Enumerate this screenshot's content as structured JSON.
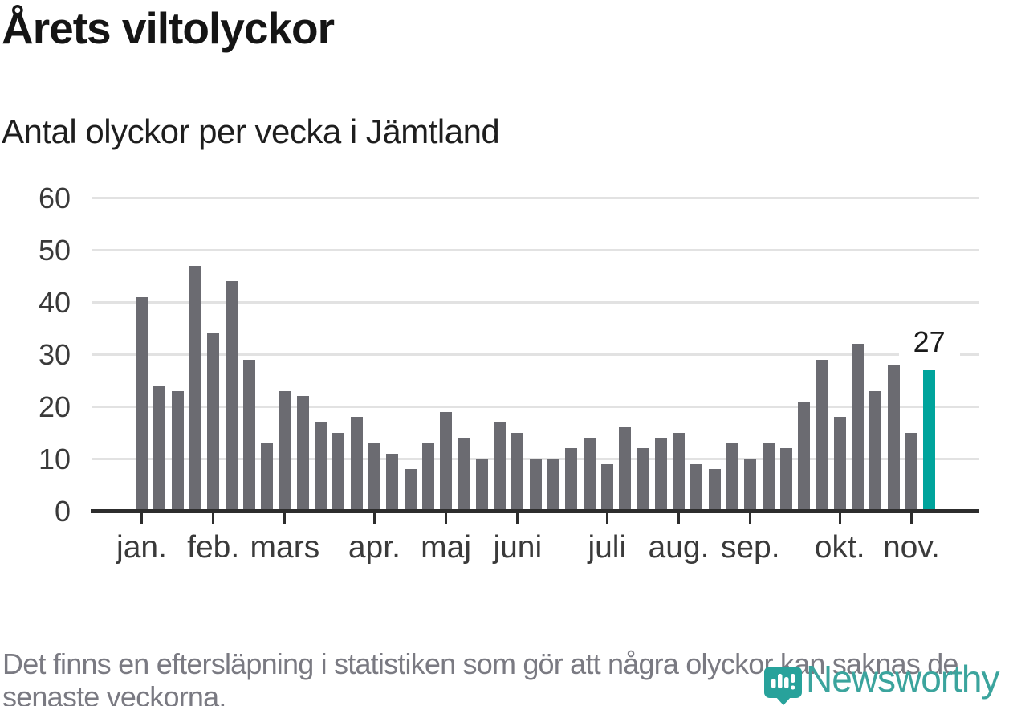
{
  "header": {
    "title": "Årets viltolyckor",
    "subtitle": "Antal olyckor per vecka i Jämtland"
  },
  "chart_data": {
    "type": "bar",
    "title": "Årets viltolyckor",
    "subtitle": "Antal olyckor per vecka i Jämtland",
    "x_unit": "vecka (week number)",
    "weeks": [
      1,
      2,
      3,
      4,
      5,
      6,
      7,
      8,
      9,
      10,
      11,
      12,
      13,
      14,
      15,
      16,
      17,
      18,
      19,
      20,
      21,
      22,
      23,
      24,
      25,
      26,
      27,
      28,
      29,
      30,
      31,
      32,
      33,
      34,
      35,
      36,
      37,
      38,
      39,
      40,
      41,
      42,
      43,
      44,
      45
    ],
    "values": [
      41,
      24,
      23,
      47,
      34,
      44,
      29,
      13,
      23,
      22,
      17,
      15,
      18,
      13,
      11,
      8,
      13,
      19,
      14,
      10,
      17,
      15,
      10,
      10,
      12,
      14,
      9,
      16,
      12,
      14,
      15,
      9,
      8,
      13,
      10,
      13,
      12,
      21,
      29,
      18,
      32,
      23,
      28,
      15,
      27
    ],
    "ylim": [
      0,
      60
    ],
    "yticks": [
      0,
      10,
      20,
      30,
      40,
      50,
      60
    ],
    "grid": "horizontal",
    "bar_color": "#6b6b71",
    "highlight_index": 44,
    "highlight_color": "#00a49c",
    "highlight_label": "27",
    "month_ticks": [
      {
        "label": "jan.",
        "week": 1
      },
      {
        "label": "feb.",
        "week": 5
      },
      {
        "label": "mars",
        "week": 9
      },
      {
        "label": "apr.",
        "week": 14
      },
      {
        "label": "maj",
        "week": 18
      },
      {
        "label": "juni",
        "week": 22
      },
      {
        "label": "juli",
        "week": 27
      },
      {
        "label": "aug.",
        "week": 31
      },
      {
        "label": "sep.",
        "week": 35
      },
      {
        "label": "okt.",
        "week": 40
      },
      {
        "label": "nov.",
        "week": 44
      }
    ],
    "legend": "none"
  },
  "footer": {
    "lines": [
      "Det finns en eftersläpning i statistiken som gör att några olyckor kan saknas de",
      "senaste veckorna."
    ],
    "logo_text": "Newsworthy"
  },
  "colors": {
    "accent_teal": "#00a49c",
    "bar_gray": "#6b6b71",
    "logo_teal": "#3ba49d"
  }
}
